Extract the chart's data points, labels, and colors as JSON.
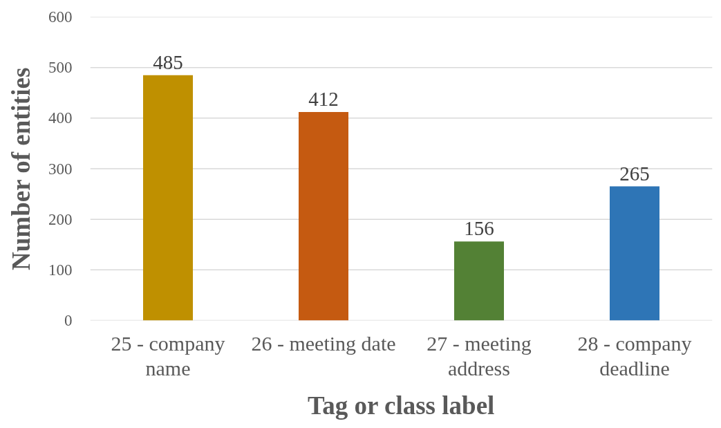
{
  "chart_data": {
    "type": "bar",
    "xlabel": "Tag or class label",
    "ylabel": "Number of entities",
    "categories": [
      "25 - company name",
      "26 - meeting date",
      "27 - meeting address",
      "28 - company deadline"
    ],
    "values": [
      485,
      412,
      156,
      265
    ],
    "colors": [
      "#bf9000",
      "#c55a11",
      "#538135",
      "#2e75b6"
    ],
    "ylim": [
      0,
      600
    ],
    "yticks": [
      0,
      100,
      200,
      300,
      400,
      500,
      600
    ],
    "grid": "y",
    "data_labels": true
  }
}
